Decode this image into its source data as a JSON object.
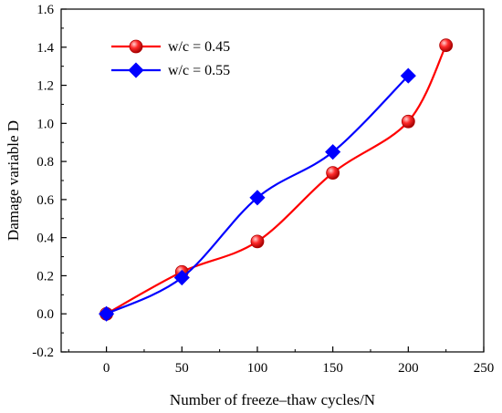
{
  "chart_data": {
    "type": "line",
    "title": "",
    "xlabel": "Number of freeze–thaw cycles/N",
    "ylabel": "Damage variable D",
    "xlim": [
      -30,
      250
    ],
    "ylim": [
      -0.2,
      1.6
    ],
    "xticks": [
      0,
      50,
      100,
      150,
      200,
      250
    ],
    "yticks": [
      -0.2,
      0.0,
      0.2,
      0.4,
      0.6,
      0.8,
      1.0,
      1.2,
      1.4,
      1.6
    ],
    "xtick_labels": [
      "0",
      "50",
      "100",
      "150",
      "200",
      "250"
    ],
    "ytick_labels": [
      "-0.2",
      "0.0",
      "0.2",
      "0.4",
      "0.6",
      "0.8",
      "1.0",
      "1.2",
      "1.4",
      "1.6"
    ],
    "grid": false,
    "legend_position": "top-left",
    "series": [
      {
        "name": "w/c = 0.45",
        "color": "#ff0000",
        "marker": "circle",
        "x": [
          0,
          50,
          100,
          150,
          200,
          225
        ],
        "y": [
          0.0,
          0.22,
          0.38,
          0.74,
          1.01,
          1.41
        ]
      },
      {
        "name": "w/c = 0.55",
        "color": "#0000ff",
        "marker": "diamond",
        "x": [
          0,
          50,
          100,
          150,
          200
        ],
        "y": [
          0.0,
          0.19,
          0.61,
          0.85,
          1.25
        ]
      }
    ]
  }
}
